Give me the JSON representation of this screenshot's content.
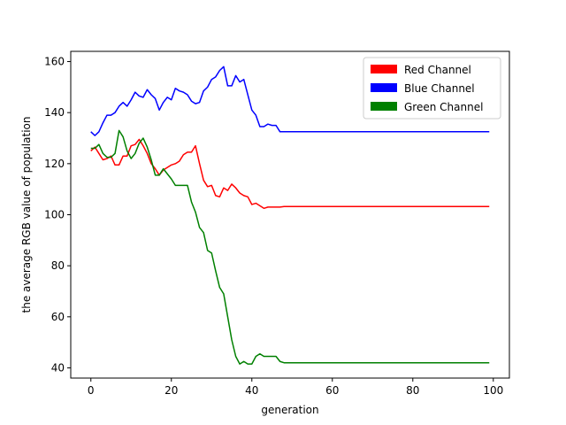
{
  "chart_data": {
    "type": "line",
    "title": "",
    "xlabel": "generation",
    "ylabel": "the average RGB value of population",
    "xlim": [
      -5,
      104
    ],
    "ylim": [
      36,
      164
    ],
    "xticks": [
      0,
      20,
      40,
      60,
      80,
      100
    ],
    "yticks": [
      40,
      60,
      80,
      100,
      120,
      140,
      160
    ],
    "grid": false,
    "legend_position": "top-right",
    "x_start": 0,
    "series": [
      {
        "name": "Red Channel",
        "color": "#ff0000",
        "values": [
          125,
          126.5,
          124,
          121.5,
          122,
          123,
          119.5,
          119.5,
          123,
          123,
          127,
          127.5,
          129.5,
          127,
          124,
          120,
          118,
          115.5,
          117.5,
          118.5,
          119.5,
          120,
          121,
          123.5,
          124.5,
          124.5,
          127,
          120,
          113.5,
          111,
          111.5,
          107.5,
          107,
          110.5,
          109.5,
          112,
          110.5,
          108.5,
          107.5,
          107,
          104,
          104.5,
          103.5,
          102.5,
          103,
          103,
          103,
          103,
          103.2,
          103.2,
          103.2,
          103.2,
          103.2,
          103.2,
          103.2,
          103.2,
          103.2,
          103.2,
          103.2,
          103.2,
          103.2,
          103.2,
          103.2,
          103.2,
          103.2,
          103.2,
          103.2,
          103.2,
          103.2,
          103.2,
          103.2,
          103.2,
          103.2,
          103.2,
          103.2,
          103.2,
          103.2,
          103.2,
          103.2,
          103.2,
          103.2,
          103.2,
          103.2,
          103.2,
          103.2,
          103.2,
          103.2,
          103.2,
          103.2,
          103.2,
          103.2,
          103.2,
          103.2,
          103.2,
          103.2,
          103.2,
          103.2,
          103.2,
          103.2,
          103.2
        ]
      },
      {
        "name": "Blue Channel",
        "color": "#0000ff",
        "values": [
          132.5,
          131,
          132.5,
          136,
          139,
          139,
          140,
          142.5,
          144,
          142.5,
          145,
          148,
          146.5,
          146,
          149,
          147,
          145.5,
          141,
          144,
          146,
          145,
          149.5,
          148.5,
          148,
          147,
          144.5,
          143.5,
          144,
          148.5,
          150,
          153,
          154,
          156.5,
          158,
          150.5,
          150.5,
          154.5,
          152,
          153,
          147,
          141,
          139,
          134.5,
          134.5,
          135.5,
          135,
          135,
          132.5,
          132.5,
          132.5,
          132.5,
          132.5,
          132.5,
          132.5,
          132.5,
          132.5,
          132.5,
          132.5,
          132.5,
          132.5,
          132.5,
          132.5,
          132.5,
          132.5,
          132.5,
          132.5,
          132.5,
          132.5,
          132.5,
          132.5,
          132.5,
          132.5,
          132.5,
          132.5,
          132.5,
          132.5,
          132.5,
          132.5,
          132.5,
          132.5,
          132.5,
          132.5,
          132.5,
          132.5,
          132.5,
          132.5,
          132.5,
          132.5,
          132.5,
          132.5,
          132.5,
          132.5,
          132.5,
          132.5,
          132.5,
          132.5,
          132.5,
          132.5,
          132.5,
          132.5
        ]
      },
      {
        "name": "Green Channel",
        "color": "#008000",
        "values": [
          126,
          126,
          127.5,
          124,
          122.5,
          122.5,
          124,
          133,
          130.5,
          125,
          122,
          124,
          128,
          130,
          126.5,
          121.5,
          115.5,
          115.5,
          118,
          116,
          114,
          111.5,
          111.5,
          111.5,
          111.5,
          105,
          101,
          95,
          93,
          86,
          85,
          78,
          71.5,
          69,
          60,
          51,
          44.5,
          41.5,
          42.5,
          41.5,
          41.5,
          44.5,
          45.5,
          44.5,
          44.5,
          44.5,
          44.5,
          42.5,
          42,
          42,
          42,
          42,
          42,
          42,
          42,
          42,
          42,
          42,
          42,
          42,
          42,
          42,
          42,
          42,
          42,
          42,
          42,
          42,
          42,
          42,
          42,
          42,
          42,
          42,
          42,
          42,
          42,
          42,
          42,
          42,
          42,
          42,
          42,
          42,
          42,
          42,
          42,
          42,
          42,
          42,
          42,
          42,
          42,
          42,
          42,
          42,
          42,
          42,
          42,
          42
        ]
      }
    ]
  }
}
